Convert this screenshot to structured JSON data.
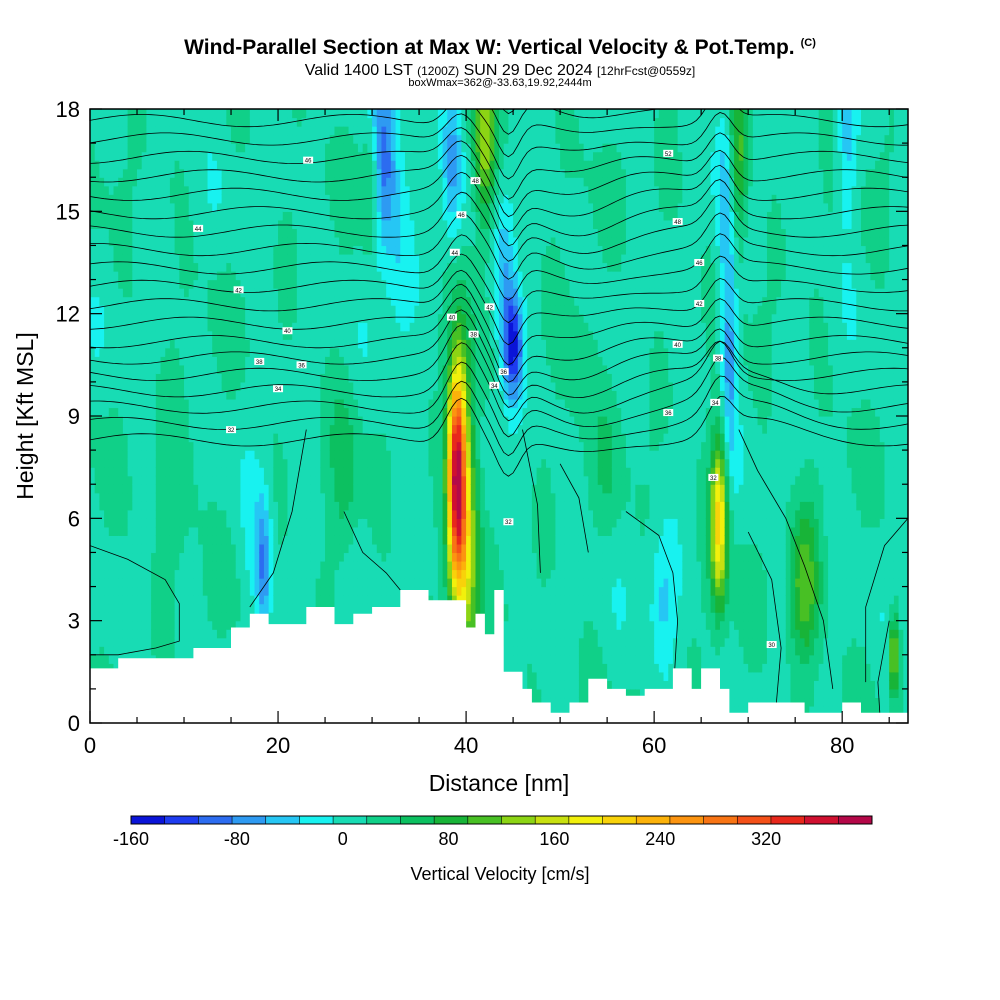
{
  "header": {
    "title": "Wind-Parallel Section at Max W: Vertical Velocity & Pot.Temp.",
    "copyright": "(C)",
    "valid_main": "Valid 1400 LST",
    "valid_z": "(1200Z)",
    "valid_date": "SUN 29 Dec 2024",
    "forecast": "[12hrFcst@0559z]",
    "box_info": "boxWmax=362@-33.63,19.92,2444m"
  },
  "chart_data": {
    "type": "heatmap",
    "xlabel": "Distance [nm]",
    "ylabel": "Height [Kft MSL]",
    "xlim": [
      0,
      87
    ],
    "ylim": [
      0,
      18
    ],
    "x_ticks": [
      0,
      20,
      40,
      60,
      80
    ],
    "y_ticks": [
      0,
      3,
      6,
      9,
      12,
      15,
      18
    ],
    "colorbar": {
      "label": "Vertical Velocity [cm/s]",
      "min": -160,
      "max": 400,
      "step": 20,
      "tick_values": [
        -160,
        -80,
        0,
        80,
        160,
        240,
        320
      ],
      "colors": [
        "#0a14d8",
        "#1e3cf0",
        "#2c6cf0",
        "#2e9af2",
        "#26c6f4",
        "#18f2f0",
        "#18dcb4",
        "#10d088",
        "#0cc060",
        "#18b438",
        "#48c024",
        "#8cd414",
        "#c8e010",
        "#f2f00c",
        "#f8d20a",
        "#fcb20a",
        "#fc9410",
        "#f87414",
        "#f45018",
        "#e8281c",
        "#d01030",
        "#b40848"
      ]
    },
    "terrain_kft": {
      "x": [
        0,
        3,
        3,
        11,
        11,
        15,
        15,
        17,
        17,
        19,
        19,
        23,
        23,
        26,
        26,
        28,
        28,
        30,
        30,
        33,
        33,
        36,
        36,
        40,
        40,
        41,
        41,
        42,
        42,
        43,
        43,
        44,
        44,
        46,
        46,
        47,
        47,
        49,
        49,
        51,
        51,
        53,
        53,
        55,
        55,
        57,
        57,
        59,
        59,
        62,
        62,
        64,
        64,
        65,
        65,
        67,
        67,
        68,
        68,
        70,
        70,
        72,
        72,
        76,
        76,
        80,
        80,
        82,
        82,
        84,
        84,
        86,
        86,
        87
      ],
      "h": [
        1.6,
        1.6,
        1.9,
        1.9,
        2.2,
        2.2,
        2.8,
        2.8,
        3.2,
        3.2,
        2.9,
        2.9,
        3.4,
        3.4,
        2.9,
        2.9,
        3.2,
        3.2,
        3.4,
        3.4,
        3.9,
        3.9,
        3.6,
        3.6,
        2.8,
        2.8,
        3.2,
        3.2,
        2.6,
        2.6,
        3.9,
        3.9,
        1.5,
        1.5,
        1.0,
        1.0,
        0.6,
        0.6,
        0.3,
        0.3,
        0.6,
        0.6,
        1.3,
        1.3,
        1.0,
        1.0,
        0.8,
        0.8,
        1.0,
        1.0,
        1.6,
        1.6,
        1.0,
        1.0,
        1.6,
        1.6,
        1.0,
        1.0,
        0.3,
        0.3,
        0.6,
        0.6,
        0.6,
        0.6,
        0.3,
        0.3,
        0.6,
        0.6,
        0.3,
        0.3,
        0.3,
        0.3,
        0.3,
        0.3
      ]
    },
    "features": [
      {
        "x": 39,
        "z": 7.2,
        "wx": 1.0,
        "wz": 3.4,
        "w": 362
      },
      {
        "x": 40.2,
        "z": 5.5,
        "wx": 1.2,
        "wz": 5.0,
        "w": 120
      },
      {
        "x": 45,
        "z": 11.0,
        "wx": 1.0,
        "wz": 1.6,
        "w": -150
      },
      {
        "x": 44,
        "z": 13.0,
        "wx": 1.2,
        "wz": 2.6,
        "w": -70
      },
      {
        "x": 31,
        "z": 16.5,
        "wx": 1.5,
        "wz": 2.6,
        "w": -120
      },
      {
        "x": 33,
        "z": 14.0,
        "wx": 1.4,
        "wz": 3.5,
        "w": -40
      },
      {
        "x": 30,
        "z": 16.0,
        "wx": 1.0,
        "wz": 2.0,
        "w": 90
      },
      {
        "x": 42,
        "z": 17.0,
        "wx": 1.2,
        "wz": 2.5,
        "w": 140
      },
      {
        "x": 38.5,
        "z": 16.5,
        "wx": 1.0,
        "wz": 2.5,
        "w": -80
      },
      {
        "x": 66.9,
        "z": 6.0,
        "wx": 0.9,
        "wz": 2.5,
        "w": 200
      },
      {
        "x": 68,
        "z": 11.0,
        "wx": 0.8,
        "wz": 3.0,
        "w": -90
      },
      {
        "x": 67.5,
        "z": 15.5,
        "wx": 1.0,
        "wz": 3.0,
        "w": -60
      },
      {
        "x": 69,
        "z": 16.5,
        "wx": 1.0,
        "wz": 2.5,
        "w": 100
      },
      {
        "x": 61,
        "z": 3.5,
        "wx": 1.5,
        "wz": 2.0,
        "w": -50
      },
      {
        "x": 18.5,
        "z": 4.5,
        "wx": 0.8,
        "wz": 2.0,
        "w": -90
      },
      {
        "x": 17.5,
        "z": 5.2,
        "wx": 1.2,
        "wz": 2.3,
        "w": -30
      },
      {
        "x": 76,
        "z": 4.0,
        "wx": 1.6,
        "wz": 2.2,
        "w": 100
      },
      {
        "x": 85.5,
        "z": 2.0,
        "wx": 0.5,
        "wz": 1.2,
        "w": 140
      },
      {
        "x": 55,
        "z": 7.5,
        "wx": 1.5,
        "wz": 2.5,
        "w": 20
      },
      {
        "x": 80.5,
        "z": 17.0,
        "wx": 1.0,
        "wz": 2.5,
        "w": -60
      },
      {
        "x": 52,
        "z": 11.0,
        "wx": 2.0,
        "wz": 2.0,
        "w": 30
      },
      {
        "x": 9,
        "z": 7.0,
        "wx": 2.5,
        "wz": 2.5,
        "w": 25
      },
      {
        "x": 27,
        "z": 7.0,
        "wx": 1.5,
        "wz": 3.0,
        "w": 40
      }
    ],
    "contour_labels": [
      {
        "x": 23.2,
        "z": 16.5,
        "text": "46"
      },
      {
        "x": 11.5,
        "z": 14.5,
        "text": "44"
      },
      {
        "x": 15.8,
        "z": 12.7,
        "text": "42"
      },
      {
        "x": 21,
        "z": 11.5,
        "text": "40"
      },
      {
        "x": 18,
        "z": 10.6,
        "text": "38"
      },
      {
        "x": 22.5,
        "z": 10.5,
        "text": "36"
      },
      {
        "x": 20,
        "z": 9.8,
        "text": "34"
      },
      {
        "x": 15,
        "z": 8.6,
        "text": "32"
      },
      {
        "x": 41,
        "z": 15.9,
        "text": "48"
      },
      {
        "x": 39.5,
        "z": 14.9,
        "text": "46"
      },
      {
        "x": 38.8,
        "z": 13.8,
        "text": "44"
      },
      {
        "x": 42.5,
        "z": 12.2,
        "text": "42"
      },
      {
        "x": 38.5,
        "z": 11.9,
        "text": "40"
      },
      {
        "x": 40.8,
        "z": 11.4,
        "text": "38"
      },
      {
        "x": 44,
        "z": 10.3,
        "text": "36"
      },
      {
        "x": 43,
        "z": 9.9,
        "text": "34"
      },
      {
        "x": 44.5,
        "z": 5.9,
        "text": "32"
      },
      {
        "x": 61.5,
        "z": 16.7,
        "text": "52"
      },
      {
        "x": 62.5,
        "z": 14.7,
        "text": "48"
      },
      {
        "x": 64.8,
        "z": 13.5,
        "text": "46"
      },
      {
        "x": 64.8,
        "z": 12.3,
        "text": "42"
      },
      {
        "x": 62.5,
        "z": 11.1,
        "text": "40"
      },
      {
        "x": 66.8,
        "z": 10.7,
        "text": "38"
      },
      {
        "x": 66.5,
        "z": 9.4,
        "text": "34"
      },
      {
        "x": 61.5,
        "z": 9.1,
        "text": "36"
      },
      {
        "x": 66.3,
        "z": 7.2,
        "text": "32"
      },
      {
        "x": 72.5,
        "z": 2.3,
        "text": "30"
      }
    ]
  }
}
